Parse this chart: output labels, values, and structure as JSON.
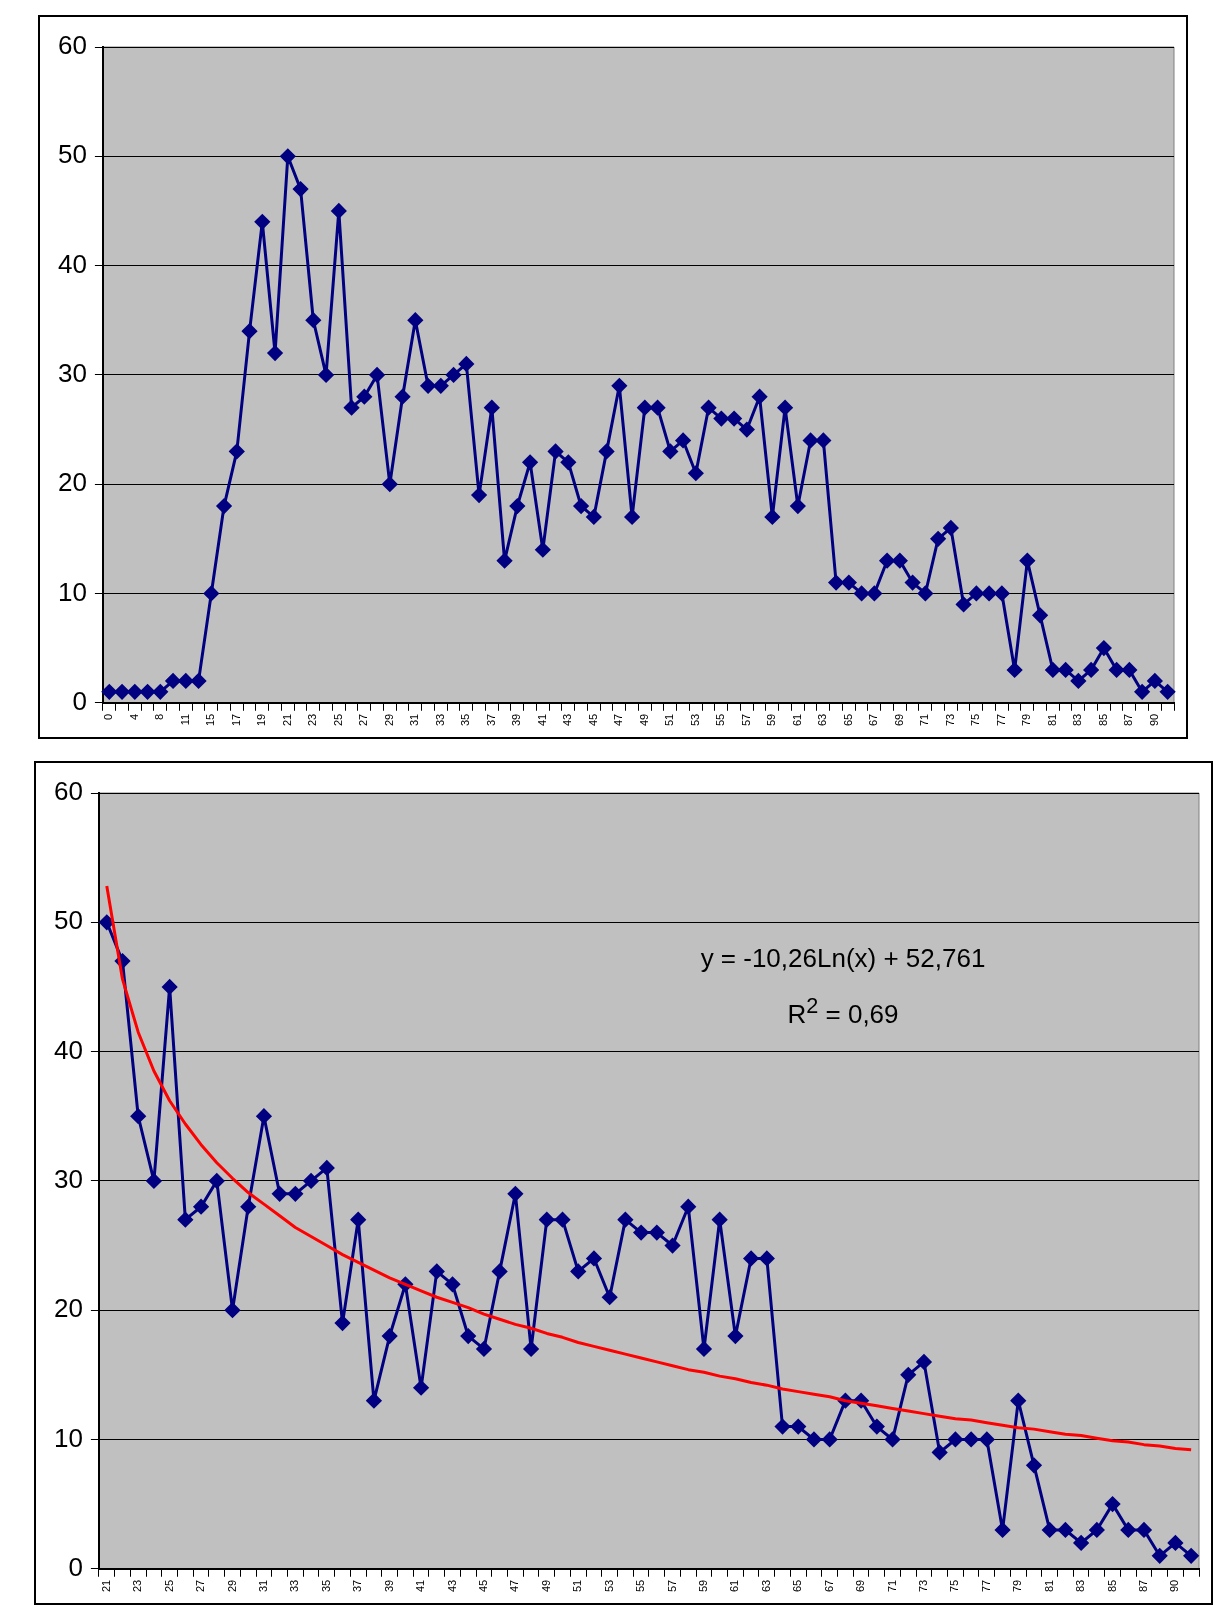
{
  "chart_data": [
    {
      "type": "line",
      "categories": [
        "0",
        null,
        "4",
        null,
        "8",
        null,
        "11",
        null,
        "15",
        null,
        "17",
        null,
        "19",
        null,
        "21",
        null,
        "23",
        null,
        "25",
        null,
        "27",
        null,
        "29",
        null,
        "31",
        null,
        "33",
        null,
        "35",
        null,
        "37",
        null,
        "39",
        null,
        "41",
        null,
        "43",
        null,
        "45",
        null,
        "47",
        null,
        "49",
        null,
        "51",
        null,
        "53",
        null,
        "55",
        null,
        "57",
        null,
        "59",
        null,
        "61",
        null,
        "63",
        null,
        "65",
        null,
        "67",
        null,
        "69",
        null,
        "71",
        null,
        "73",
        null,
        "75",
        null,
        "77",
        null,
        "79",
        null,
        "81",
        null,
        "83",
        null,
        "85",
        null,
        "87",
        null,
        "90",
        null
      ],
      "series": [
        {
          "color": "#000080",
          "marker": "diamond",
          "values": [
            1,
            1,
            1,
            1,
            1,
            2,
            2,
            2,
            10,
            18,
            23,
            34,
            44,
            32,
            50,
            47,
            35,
            30,
            45,
            27,
            28,
            30,
            20,
            28,
            35,
            29,
            29,
            30,
            31,
            19,
            27,
            13,
            18,
            22,
            14,
            23,
            22,
            18,
            17,
            23,
            29,
            17,
            27,
            27,
            23,
            24,
            21,
            27,
            26,
            26,
            25,
            28,
            17,
            27,
            18,
            24,
            24,
            11,
            11,
            10,
            10,
            13,
            13,
            11,
            10,
            15,
            16,
            9,
            10,
            10,
            10,
            3,
            13,
            8,
            3,
            3,
            2,
            3,
            5,
            3,
            3,
            1,
            2,
            1
          ]
        }
      ],
      "ylim": [
        0,
        60
      ],
      "yticks": [
        0,
        10,
        20,
        30,
        40,
        50,
        60
      ],
      "grid": "y",
      "legend": false
    },
    {
      "type": "line",
      "categories": [
        "21",
        null,
        "23",
        null,
        "25",
        null,
        "27",
        null,
        "29",
        null,
        "31",
        null,
        "33",
        null,
        "35",
        null,
        "37",
        null,
        "39",
        null,
        "41",
        null,
        "43",
        null,
        "45",
        null,
        "47",
        null,
        "49",
        null,
        "51",
        null,
        "53",
        null,
        "55",
        null,
        "57",
        null,
        "59",
        null,
        "61",
        null,
        "63",
        null,
        "65",
        null,
        "67",
        null,
        "69",
        null,
        "71",
        null,
        "73",
        null,
        "75",
        null,
        "77",
        null,
        "79",
        null,
        "81",
        null,
        "83",
        null,
        "85",
        null,
        "87",
        null,
        "90",
        null
      ],
      "series": [
        {
          "color": "#000080",
          "marker": "diamond",
          "values": [
            50,
            47,
            35,
            30,
            45,
            27,
            28,
            30,
            20,
            28,
            35,
            29,
            29,
            30,
            31,
            19,
            27,
            13,
            18,
            22,
            14,
            23,
            22,
            18,
            17,
            23,
            29,
            17,
            27,
            27,
            23,
            24,
            21,
            27,
            26,
            26,
            25,
            28,
            17,
            27,
            18,
            24,
            24,
            11,
            11,
            10,
            10,
            13,
            13,
            11,
            10,
            15,
            16,
            9,
            10,
            10,
            10,
            3,
            13,
            8,
            3,
            3,
            2,
            3,
            5,
            3,
            3,
            1,
            2,
            1
          ]
        },
        {
          "type": "line",
          "color": "#ff0000",
          "marker": "none",
          "values": [
            52.8,
            45.6,
            41.5,
            38.5,
            36.2,
            34.4,
            32.8,
            31.4,
            30.2,
            29.1,
            28.2,
            27.3,
            26.4,
            25.7,
            25.0,
            24.3,
            23.7,
            23.1,
            22.5,
            22.0,
            21.5,
            21.0,
            20.6,
            20.2,
            19.7,
            19.3,
            18.9,
            18.6,
            18.2,
            17.9,
            17.5,
            17.2,
            16.9,
            16.6,
            16.3,
            16.0,
            15.7,
            15.4,
            15.2,
            14.9,
            14.7,
            14.4,
            14.2,
            13.9,
            13.7,
            13.5,
            13.3,
            13.0,
            12.8,
            12.6,
            12.4,
            12.2,
            12.0,
            11.8,
            11.6,
            11.5,
            11.3,
            11.1,
            10.9,
            10.8,
            10.6,
            10.4,
            10.3,
            10.1,
            9.9,
            9.8,
            9.6,
            9.5,
            9.3,
            9.2
          ]
        }
      ],
      "ylim": [
        0,
        60
      ],
      "yticks": [
        0,
        10,
        20,
        30,
        40,
        50,
        60
      ],
      "grid": "y",
      "legend": false,
      "annotations": [
        "y = -10,26Ln(x) + 52,761",
        "R$^{2}$ = 0,69"
      ]
    }
  ]
}
